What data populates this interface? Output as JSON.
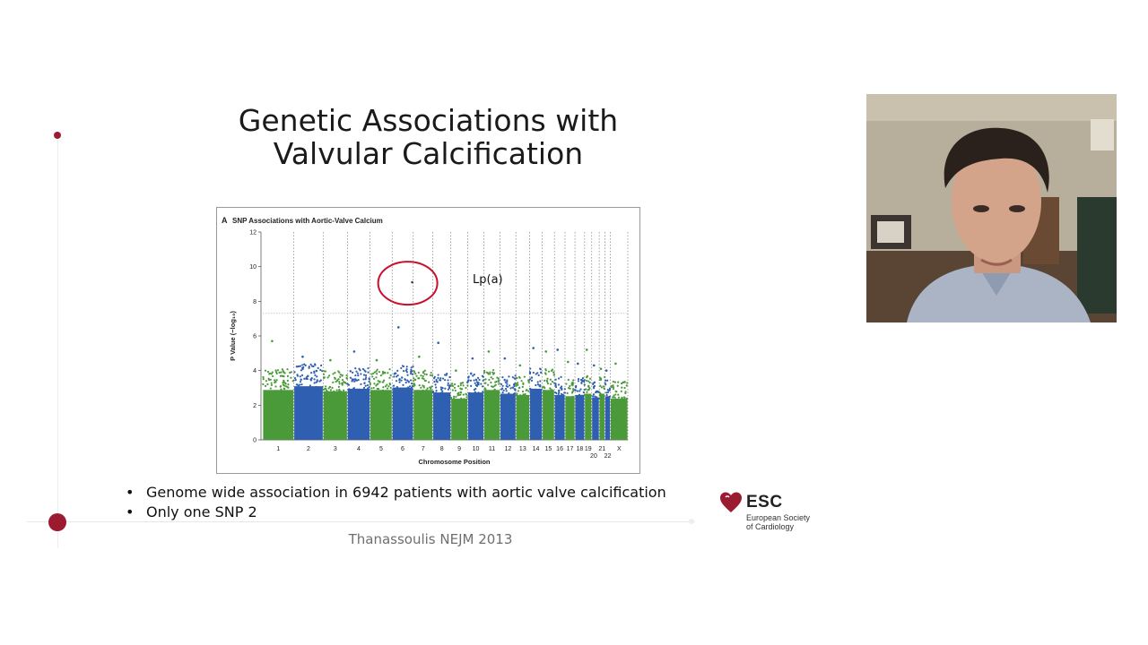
{
  "colors": {
    "accent": "#9b1b30",
    "green": "#4a9a3a",
    "blue": "#2f5fb0"
  },
  "slide": {
    "title_line1": "Genetic Associations with",
    "title_line2": "Valvular Calcification",
    "bullets": [
      "Genome wide association in 6942 patients with aortic valve calcification",
      "Only one SNP 2"
    ],
    "citation": "Thanassoulis NEJM 2013"
  },
  "logo": {
    "abbr": "ESC",
    "name_line1": "European Society",
    "name_line2": "of Cardiology"
  },
  "webcam": {
    "icon": "presenter-video"
  },
  "chart_data": {
    "type": "scatter",
    "panel_label": "A",
    "title": "SNP Associations with Aortic-Valve Calcium",
    "xlabel": "Chromosome Position",
    "ylabel": "P Value (−log₁₀)",
    "ylim": [
      0,
      12
    ],
    "yticks": [
      0,
      2,
      4,
      6,
      8,
      10,
      12
    ],
    "threshold": 7.3,
    "annotation": "Lp(a)",
    "highlight": {
      "chromosome": "6",
      "value": 9.1
    },
    "chromosomes": [
      {
        "label": "1",
        "start": 0,
        "size": 10.0,
        "top": 4.0,
        "peak": 5.7
      },
      {
        "label": "2",
        "start": 10.0,
        "size": 9.4,
        "top": 4.3,
        "peak": 4.8
      },
      {
        "label": "3",
        "start": 19.4,
        "size": 7.8,
        "top": 3.9,
        "peak": 4.6
      },
      {
        "label": "4",
        "start": 27.2,
        "size": 7.3,
        "top": 4.1,
        "peak": 5.1
      },
      {
        "label": "5",
        "start": 34.5,
        "size": 7.1,
        "top": 4.0,
        "peak": 4.6
      },
      {
        "label": "6",
        "start": 41.6,
        "size": 6.8,
        "top": 4.2,
        "peak": 6.5
      },
      {
        "label": "7",
        "start": 48.4,
        "size": 6.3,
        "top": 4.0,
        "peak": 4.8
      },
      {
        "label": "8",
        "start": 54.7,
        "size": 5.8,
        "top": 3.8,
        "peak": 5.6
      },
      {
        "label": "9",
        "start": 60.5,
        "size": 5.4,
        "top": 3.3,
        "peak": 4.0
      },
      {
        "label": "10",
        "start": 65.9,
        "size": 5.2,
        "top": 3.8,
        "peak": 4.7
      },
      {
        "label": "11",
        "start": 71.1,
        "size": 5.2,
        "top": 4.0,
        "peak": 5.1
      },
      {
        "label": "12",
        "start": 76.3,
        "size": 5.1,
        "top": 3.7,
        "peak": 4.7
      },
      {
        "label": "13",
        "start": 81.4,
        "size": 4.4,
        "top": 3.6,
        "peak": 4.3
      },
      {
        "label": "14",
        "start": 85.8,
        "size": 4.1,
        "top": 4.1,
        "peak": 5.3
      },
      {
        "label": "15",
        "start": 89.9,
        "size": 3.9,
        "top": 4.0,
        "peak": 5.1
      },
      {
        "label": "16",
        "start": 93.8,
        "size": 3.4,
        "top": 3.6,
        "peak": 5.2
      },
      {
        "label": "17",
        "start": 97.2,
        "size": 3.2,
        "top": 3.5,
        "peak": 4.5
      },
      {
        "label": "18",
        "start": 100.4,
        "size": 3.1,
        "top": 3.6,
        "peak": 4.4
      },
      {
        "label": "19",
        "start": 103.5,
        "size": 2.3,
        "top": 3.7,
        "peak": 5.2
      },
      {
        "label": "20",
        "start": 105.8,
        "size": 2.4,
        "top": 3.4,
        "peak": 4.3
      },
      {
        "label": "21",
        "start": 108.2,
        "size": 1.8,
        "top": 3.7,
        "peak": 4.1
      },
      {
        "label": "22",
        "start": 110.0,
        "size": 1.8,
        "top": 3.5,
        "peak": 4.0
      },
      {
        "label": "X",
        "start": 111.8,
        "size": 5.6,
        "top": 3.3,
        "peak": 4.4
      }
    ]
  }
}
